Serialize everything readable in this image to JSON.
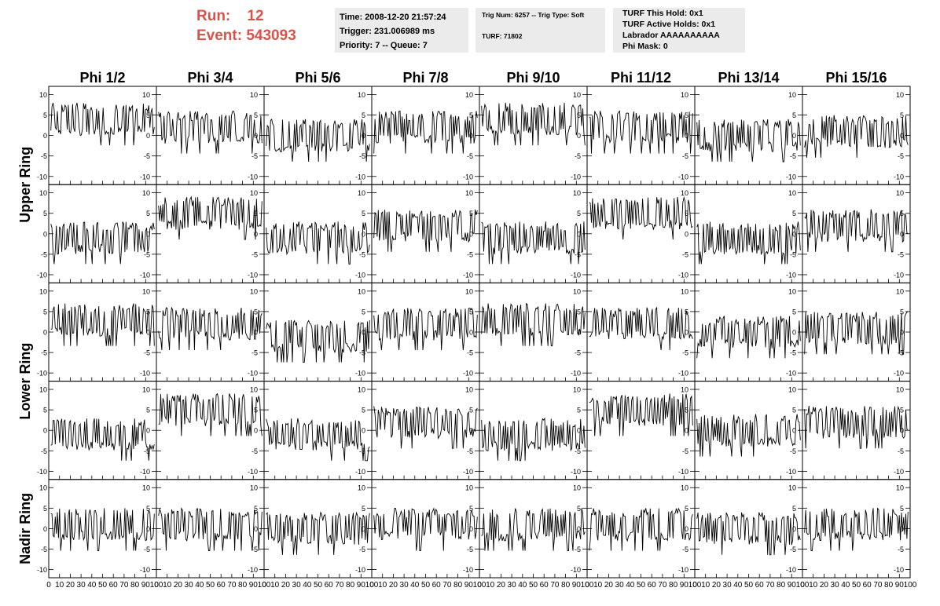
{
  "header": {
    "run_label": "Run:",
    "run_value": "12",
    "event_label": "Event:",
    "event_value": "543093",
    "time_line": "Time: 2008-12-20 21:57:24",
    "trigger_line": "Trigger: 231.006989 ms",
    "priority_line": "Priority: 7 -- Queue: 7",
    "trig_line": "Trig Num: 6257 -- Trig Type: Soft",
    "turf_line": "TURF: 71802",
    "turf_hold_line": "TURF This Hold: 0x1",
    "turf_active_line": "TURF Active Holds: 0x1",
    "labrador_line": "Labrador AAAAAAAAAA",
    "phi_mask_line": "Phi Mask: 0"
  },
  "chart_data": {
    "type": "line",
    "columns": [
      "Phi 1/2",
      "Phi 3/4",
      "Phi 5/6",
      "Phi 7/8",
      "Phi 9/10",
      "Phi 11/12",
      "Phi 13/14",
      "Phi 15/16"
    ],
    "row_titles": [
      {
        "label": "Upper Ring",
        "rows": [
          0,
          1
        ]
      },
      {
        "label": "Lower Ring",
        "rows": [
          2,
          3
        ]
      },
      {
        "label": "Nadir Ring",
        "rows": [
          4
        ]
      }
    ],
    "rows": 5,
    "xlim": [
      0,
      100
    ],
    "ylim": [
      -12,
      12
    ],
    "x_ticks": [
      0,
      10,
      20,
      30,
      40,
      50,
      60,
      70,
      80,
      90,
      100
    ],
    "x_tick_labels": [
      "0",
      "10",
      "20",
      "30",
      "40",
      "50",
      "60",
      "70",
      "80",
      "90",
      "100"
    ],
    "y_ticks": [
      -10,
      -5,
      0,
      5,
      10
    ],
    "y_tick_labels": [
      "-10",
      "-5",
      "0",
      "5",
      "10"
    ],
    "samples_per_trace": 95,
    "trace_baselines": [
      [
        4,
        2,
        0,
        2,
        4,
        2,
        0,
        1
      ],
      [
        -1,
        5,
        -1,
        2,
        -1,
        5,
        -1,
        2
      ],
      [
        3,
        2,
        -1,
        2,
        3,
        2,
        0,
        1
      ],
      [
        -1,
        5,
        -1,
        2,
        -1,
        5,
        0,
        2
      ],
      [
        1,
        1,
        0,
        1,
        1,
        1,
        0,
        1
      ]
    ],
    "trace_amplitude": 4,
    "line_color": "#000000"
  }
}
